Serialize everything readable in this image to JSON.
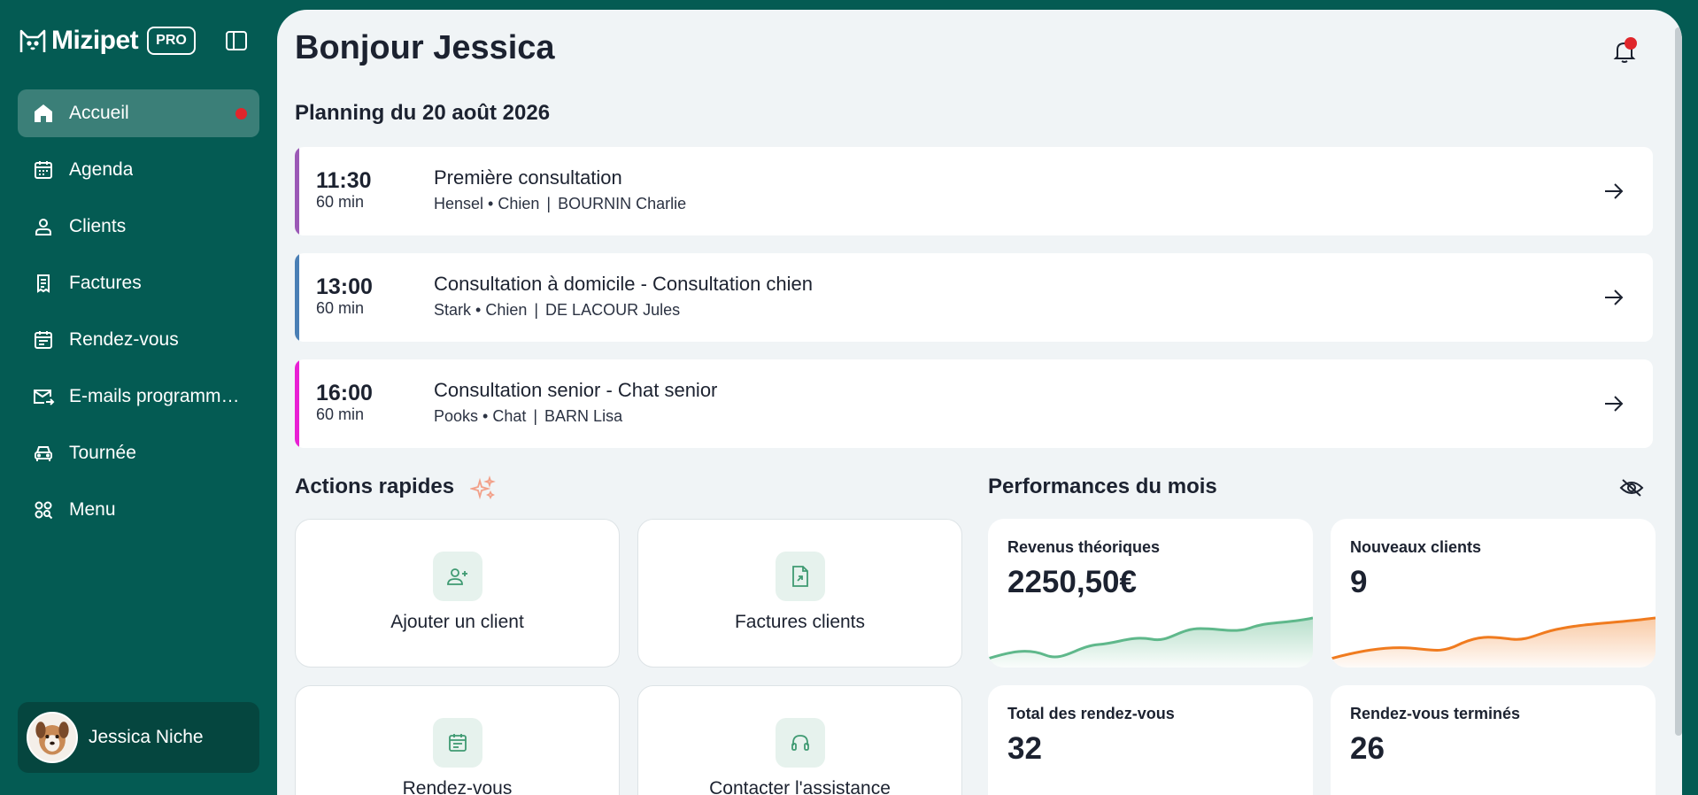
{
  "sidebar": {
    "brand_name": "Mizipet",
    "brand_badge": "PRO",
    "items": [
      {
        "label": "Accueil",
        "icon": "home-icon",
        "active": true
      },
      {
        "label": "Agenda",
        "icon": "calendar-icon"
      },
      {
        "label": "Clients",
        "icon": "user-icon"
      },
      {
        "label": "Factures",
        "icon": "receipt-icon"
      },
      {
        "label": "Rendez-vous",
        "icon": "calendar-list-icon"
      },
      {
        "label": "E-mails programm…",
        "icon": "mail-send-icon"
      },
      {
        "label": "Tournée",
        "icon": "car-icon"
      },
      {
        "label": "Menu",
        "icon": "grid-menu-icon"
      }
    ],
    "user_name": "Jessica Niche"
  },
  "header": {
    "greeting": "Bonjour Jessica"
  },
  "planning": {
    "title": "Planning du 20 août 2026",
    "appointments": [
      {
        "time": "11:30",
        "duration": "60 min",
        "title": "Première consultation",
        "pet": "Hensel • Chien",
        "client": "BOURNIN Charlie",
        "color": "#9b59b6"
      },
      {
        "time": "13:00",
        "duration": "60 min",
        "title": "Consultation à domicile - Consultation chien",
        "pet": "Stark • Chien",
        "client": "DE LACOUR Jules",
        "color": "#4a7fb5"
      },
      {
        "time": "16:00",
        "duration": "60 min",
        "title": "Consultation senior - Chat senior",
        "pet": "Pooks • Chat",
        "client": "BARN Lisa",
        "color": "#e820d4"
      }
    ]
  },
  "quick_actions": {
    "title": "Actions rapides",
    "items": [
      {
        "label": "Ajouter un client",
        "icon": "user-plus-icon"
      },
      {
        "label": "Factures clients",
        "icon": "file-icon"
      },
      {
        "label": "Rendez-vous",
        "icon": "calendar-list-icon"
      },
      {
        "label": "Contacter l'assistance",
        "icon": "headset-icon"
      }
    ]
  },
  "performance": {
    "title": "Performances du mois",
    "cards": [
      {
        "label": "Revenus théoriques",
        "value": "2250,50€",
        "color": "#5fb88b"
      },
      {
        "label": "Nouveaux clients",
        "value": "9",
        "color": "#f07b1f"
      },
      {
        "label": "Total des rendez-vous",
        "value": "32",
        "color": "#8a5bd8"
      },
      {
        "label": "Rendez-vous terminés",
        "value": "26",
        "color": "#4a9de0"
      }
    ]
  }
}
